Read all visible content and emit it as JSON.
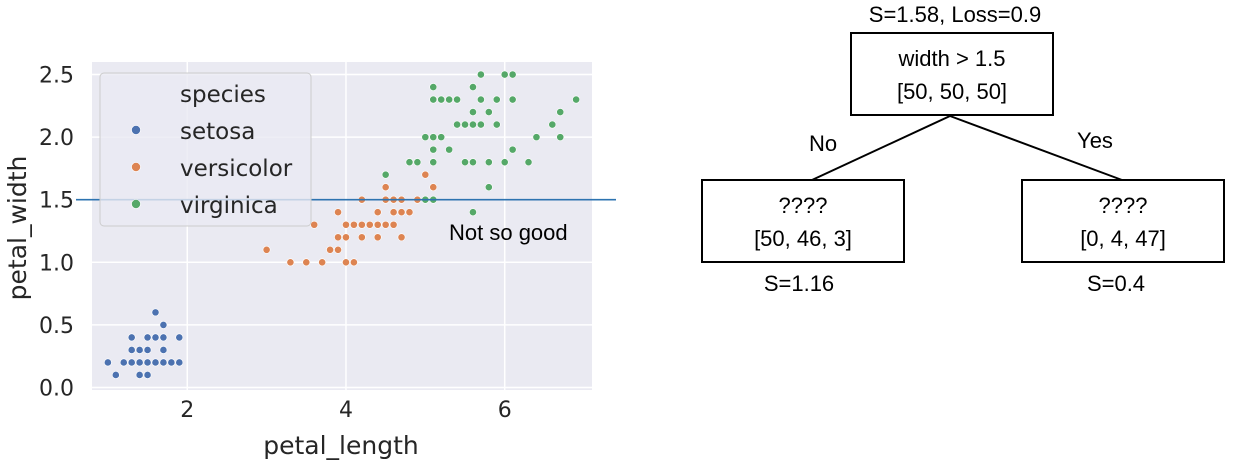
{
  "chart_data": {
    "type": "scatter",
    "xlabel": "petal_length",
    "ylabel": "petal_width",
    "xlim": [
      0.8,
      7.1
    ],
    "ylim": [
      -0.02,
      2.6
    ],
    "xticks": [
      "2",
      "4",
      "6"
    ],
    "yticks": [
      "0.0",
      "0.5",
      "1.0",
      "1.5",
      "2.0",
      "2.5"
    ],
    "grid": true,
    "legend": {
      "title": "species",
      "placement": "upper-left"
    },
    "hline": {
      "y": 1.5,
      "annotation": "Not so good",
      "color": "#2d73b0"
    },
    "series": [
      {
        "name": "setosa",
        "color": "#4c72b0",
        "points": [
          [
            1.0,
            0.2
          ],
          [
            1.1,
            0.1
          ],
          [
            1.2,
            0.2
          ],
          [
            1.3,
            0.2
          ],
          [
            1.3,
            0.3
          ],
          [
            1.3,
            0.4
          ],
          [
            1.4,
            0.1
          ],
          [
            1.4,
            0.2
          ],
          [
            1.4,
            0.3
          ],
          [
            1.5,
            0.1
          ],
          [
            1.5,
            0.2
          ],
          [
            1.5,
            0.3
          ],
          [
            1.5,
            0.4
          ],
          [
            1.6,
            0.2
          ],
          [
            1.6,
            0.4
          ],
          [
            1.6,
            0.6
          ],
          [
            1.7,
            0.2
          ],
          [
            1.7,
            0.3
          ],
          [
            1.7,
            0.4
          ],
          [
            1.7,
            0.5
          ],
          [
            1.8,
            0.2
          ],
          [
            1.9,
            0.2
          ],
          [
            1.9,
            0.4
          ]
        ]
      },
      {
        "name": "versicolor",
        "color": "#dd8452",
        "points": [
          [
            3.0,
            1.1
          ],
          [
            3.3,
            1.0
          ],
          [
            3.5,
            1.0
          ],
          [
            3.6,
            1.3
          ],
          [
            3.7,
            1.0
          ],
          [
            3.8,
            1.1
          ],
          [
            3.9,
            1.1
          ],
          [
            3.9,
            1.2
          ],
          [
            3.9,
            1.4
          ],
          [
            4.0,
            1.0
          ],
          [
            4.0,
            1.2
          ],
          [
            4.0,
            1.3
          ],
          [
            4.1,
            1.0
          ],
          [
            4.1,
            1.3
          ],
          [
            4.2,
            1.2
          ],
          [
            4.2,
            1.3
          ],
          [
            4.2,
            1.5
          ],
          [
            4.3,
            1.3
          ],
          [
            4.4,
            1.2
          ],
          [
            4.4,
            1.3
          ],
          [
            4.4,
            1.4
          ],
          [
            4.5,
            1.3
          ],
          [
            4.5,
            1.5
          ],
          [
            4.5,
            1.6
          ],
          [
            4.6,
            1.3
          ],
          [
            4.6,
            1.4
          ],
          [
            4.6,
            1.5
          ],
          [
            4.7,
            1.2
          ],
          [
            4.7,
            1.4
          ],
          [
            4.7,
            1.5
          ],
          [
            4.8,
            1.4
          ],
          [
            4.8,
            1.8
          ],
          [
            4.9,
            1.5
          ],
          [
            5.0,
            1.7
          ],
          [
            5.1,
            1.6
          ]
        ]
      },
      {
        "name": "virginica",
        "color": "#55a868",
        "points": [
          [
            4.5,
            1.7
          ],
          [
            4.8,
            1.8
          ],
          [
            4.9,
            1.8
          ],
          [
            5.0,
            1.5
          ],
          [
            5.0,
            2.0
          ],
          [
            5.1,
            1.5
          ],
          [
            5.1,
            1.8
          ],
          [
            5.1,
            1.9
          ],
          [
            5.1,
            2.0
          ],
          [
            5.1,
            2.3
          ],
          [
            5.1,
            2.4
          ],
          [
            5.2,
            2.0
          ],
          [
            5.2,
            2.3
          ],
          [
            5.3,
            1.9
          ],
          [
            5.3,
            2.3
          ],
          [
            5.4,
            2.1
          ],
          [
            5.4,
            2.3
          ],
          [
            5.5,
            1.8
          ],
          [
            5.5,
            2.1
          ],
          [
            5.6,
            1.4
          ],
          [
            5.6,
            1.8
          ],
          [
            5.6,
            2.1
          ],
          [
            5.6,
            2.2
          ],
          [
            5.6,
            2.4
          ],
          [
            5.7,
            2.1
          ],
          [
            5.7,
            2.3
          ],
          [
            5.7,
            2.5
          ],
          [
            5.8,
            1.6
          ],
          [
            5.8,
            1.8
          ],
          [
            5.8,
            2.2
          ],
          [
            5.9,
            2.1
          ],
          [
            5.9,
            2.3
          ],
          [
            6.0,
            1.8
          ],
          [
            6.0,
            2.5
          ],
          [
            6.1,
            1.9
          ],
          [
            6.1,
            2.3
          ],
          [
            6.1,
            2.5
          ],
          [
            6.3,
            1.8
          ],
          [
            6.4,
            2.0
          ],
          [
            6.6,
            2.1
          ],
          [
            6.7,
            2.0
          ],
          [
            6.7,
            2.2
          ],
          [
            6.9,
            2.3
          ]
        ]
      }
    ]
  },
  "tree": {
    "root": {
      "header": "S=1.58, Loss=0.9",
      "line1": "width > 1.5",
      "line2": "[50, 50, 50]"
    },
    "left": {
      "edge": "No",
      "line1": "????",
      "line2": "[50, 46, 3]",
      "footer": "S=1.16"
    },
    "right": {
      "edge": "Yes",
      "line1": "????",
      "line2": "[0, 4, 47]",
      "footer": "S=0.4"
    }
  }
}
